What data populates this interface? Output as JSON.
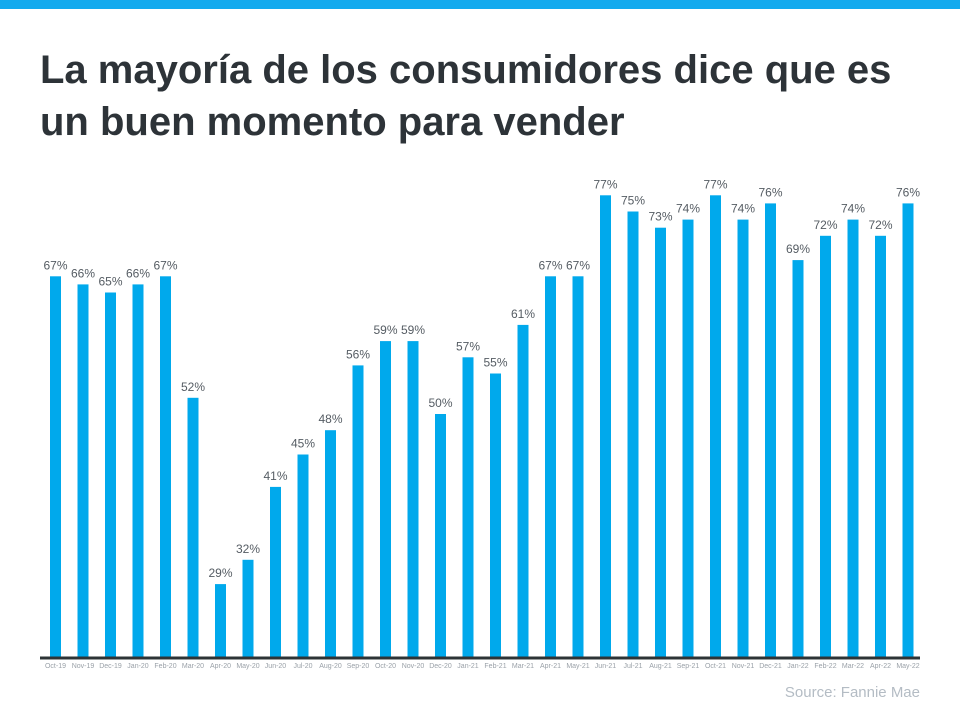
{
  "title": "La mayoría de los consumidores dice que es un buen momento para vender",
  "source": "Source: Fannie Mae",
  "colors": {
    "bar": "#00a9ec",
    "topbar": "#13aaee",
    "axis": "#2d3436",
    "label": "#555c63"
  },
  "chart_data": {
    "type": "bar",
    "title": "La mayoría de los consumidores dice que es un buen momento para vender",
    "categories": [
      "Oct-19",
      "Nov-19",
      "Dec-19",
      "Jan-20",
      "Feb-20",
      "Mar-20",
      "Apr-20",
      "May-20",
      "Jun-20",
      "Jul-20",
      "Aug-20",
      "Sep-20",
      "Oct-20",
      "Nov-20",
      "Dec-20",
      "Jan-21",
      "Feb-21",
      "Mar-21",
      "Apr-21",
      "May-21",
      "Jun-21",
      "Jul-21",
      "Aug-21",
      "Sep-21",
      "Oct-21",
      "Nov-21",
      "Dec-21",
      "Jan-22",
      "Feb-22",
      "Mar-22",
      "Apr-22",
      "May-22"
    ],
    "values": [
      67,
      66,
      65,
      66,
      67,
      52,
      29,
      32,
      41,
      45,
      48,
      56,
      59,
      59,
      50,
      57,
      55,
      61,
      67,
      67,
      77,
      75,
      73,
      74,
      77,
      74,
      76,
      69,
      72,
      74,
      72,
      76
    ],
    "value_suffix": "%",
    "xlabel": "",
    "ylabel": "",
    "ylim": [
      20,
      80
    ],
    "grid": false,
    "data_labels": true
  }
}
